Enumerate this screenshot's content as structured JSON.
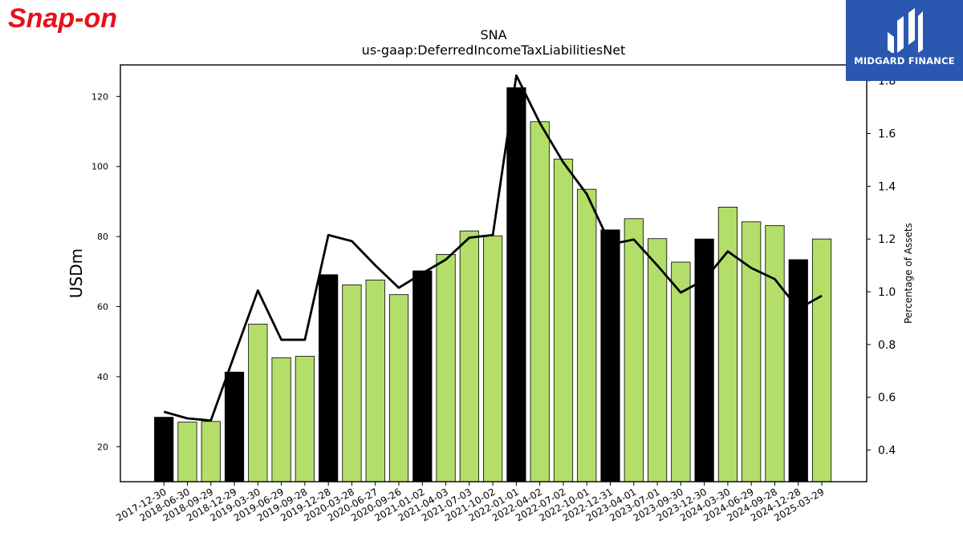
{
  "brand": {
    "logo_text": "Snap-on",
    "badge_text": "MIDGARD FINANCE",
    "logo_color": "#e8101a",
    "badge_color": "#2b57b0"
  },
  "chart_data": {
    "type": "bar",
    "title": "SNA",
    "subtitle": "us-gaap:DeferredIncomeTaxLiabilitiesNet",
    "ylabel": "USDm",
    "y2label": "Percentage of Assets",
    "ylim": [
      10,
      129
    ],
    "y2lim": [
      0.28,
      1.86
    ],
    "yticks": [
      20,
      40,
      60,
      80,
      100,
      120
    ],
    "y2ticks": [
      0.4,
      0.6,
      0.8,
      1.0,
      1.2,
      1.4,
      1.6,
      1.8
    ],
    "grid": false,
    "categories": [
      "2017-12-30",
      "2018-06-30",
      "2018-09-29",
      "2018-12-29",
      "2019-03-30",
      "2019-06-29",
      "2019-09-28",
      "2019-12-28",
      "2020-03-28",
      "2020-06-27",
      "2020-09-26",
      "2021-01-02",
      "2021-04-03",
      "2021-07-03",
      "2021-10-02",
      "2022-01-01",
      "2022-04-02",
      "2022-07-02",
      "2022-10-01",
      "2022-12-31",
      "2023-04-01",
      "2023-07-01",
      "2023-09-30",
      "2023-12-30",
      "2024-03-30",
      "2024-06-29",
      "2024-09-28",
      "2024-12-28",
      "2025-03-29"
    ],
    "series": [
      {
        "type": "bar",
        "values": [
          28.4,
          27.0,
          27.2,
          41.3,
          55.0,
          45.4,
          45.8,
          69.1,
          66.2,
          67.6,
          63.4,
          70.2,
          74.9,
          81.6,
          80.2,
          122.5,
          112.8,
          102.1,
          93.5,
          81.9,
          85.1,
          79.4,
          72.7,
          79.3,
          88.4,
          84.2,
          83.1,
          73.4,
          79.3
        ],
        "colors": [
          "#000000",
          "#b3de69",
          "#b3de69",
          "#000000",
          "#b3de69",
          "#b3de69",
          "#b3de69",
          "#000000",
          "#b3de69",
          "#b3de69",
          "#b3de69",
          "#000000",
          "#b3de69",
          "#b3de69",
          "#b3de69",
          "#000000",
          "#b3de69",
          "#b3de69",
          "#b3de69",
          "#000000",
          "#b3de69",
          "#b3de69",
          "#b3de69",
          "#000000",
          "#b3de69",
          "#b3de69",
          "#b3de69",
          "#000000",
          "#b3de69"
        ]
      },
      {
        "type": "line",
        "axis": "right",
        "color": "#000000",
        "values": [
          0.545,
          0.52,
          0.512,
          0.76,
          1.005,
          0.818,
          0.818,
          1.215,
          1.192,
          1.1,
          1.015,
          1.07,
          1.122,
          1.205,
          1.215,
          1.82,
          1.64,
          1.49,
          1.37,
          1.18,
          1.198,
          1.1,
          0.997,
          1.045,
          1.153,
          1.09,
          1.048,
          0.935,
          0.985
        ]
      }
    ]
  }
}
